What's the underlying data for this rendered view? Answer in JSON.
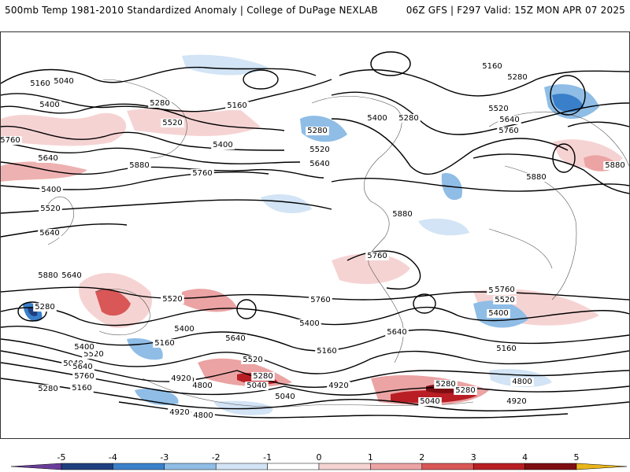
{
  "header": {
    "left_title": "500mb Temp 1981-2010 Standardized Anomaly | College of DuPage NEXLAB",
    "right_title": "06Z GFS | F297 Valid: 15Z MON APR 07 2025"
  },
  "contour_labels": [
    "5160",
    "5040",
    "5400",
    "5280",
    "5520",
    "5760",
    "5640",
    "5880",
    "5160",
    "5400",
    "5520",
    "5640",
    "5280",
    "5400",
    "5280",
    "5520",
    "5640",
    "5760",
    "5160",
    "5280",
    "5400",
    "5520",
    "5640",
    "5760",
    "5880",
    "5880",
    "5880",
    "5760",
    "5640",
    "5520",
    "5400",
    "5280",
    "5160",
    "5040",
    "4920",
    "4800",
    "5760",
    "5640",
    "5520",
    "5400",
    "5280",
    "5160",
    "5040",
    "4920",
    "4800",
    "5400",
    "5520",
    "5640",
    "5760",
    "5880",
    "5160",
    "5280",
    "5040",
    "4920",
    "5760",
    "5640",
    "5520",
    "5400",
    "5160",
    "5280",
    "4920",
    "4920",
    "4800",
    "5040",
    "5280",
    "5640"
  ],
  "colorbar": {
    "ticks": [
      "-5",
      "-4",
      "-3",
      "-2",
      "-1",
      "0",
      "1",
      "2",
      "3",
      "4",
      "5"
    ],
    "colors": {
      "neg5": "#6a3d9a",
      "neg4": "#1f3f7f",
      "neg3": "#3a7fc9",
      "neg2": "#8fbde6",
      "neg1": "#d2e4f5",
      "zero": "#ffffff",
      "pos1": "#f6d3d3",
      "pos2": "#eba3a3",
      "pos3": "#d95757",
      "pos4": "#b81e24",
      "pos5": "#7e0e12",
      "over": "#e9b51b"
    }
  }
}
